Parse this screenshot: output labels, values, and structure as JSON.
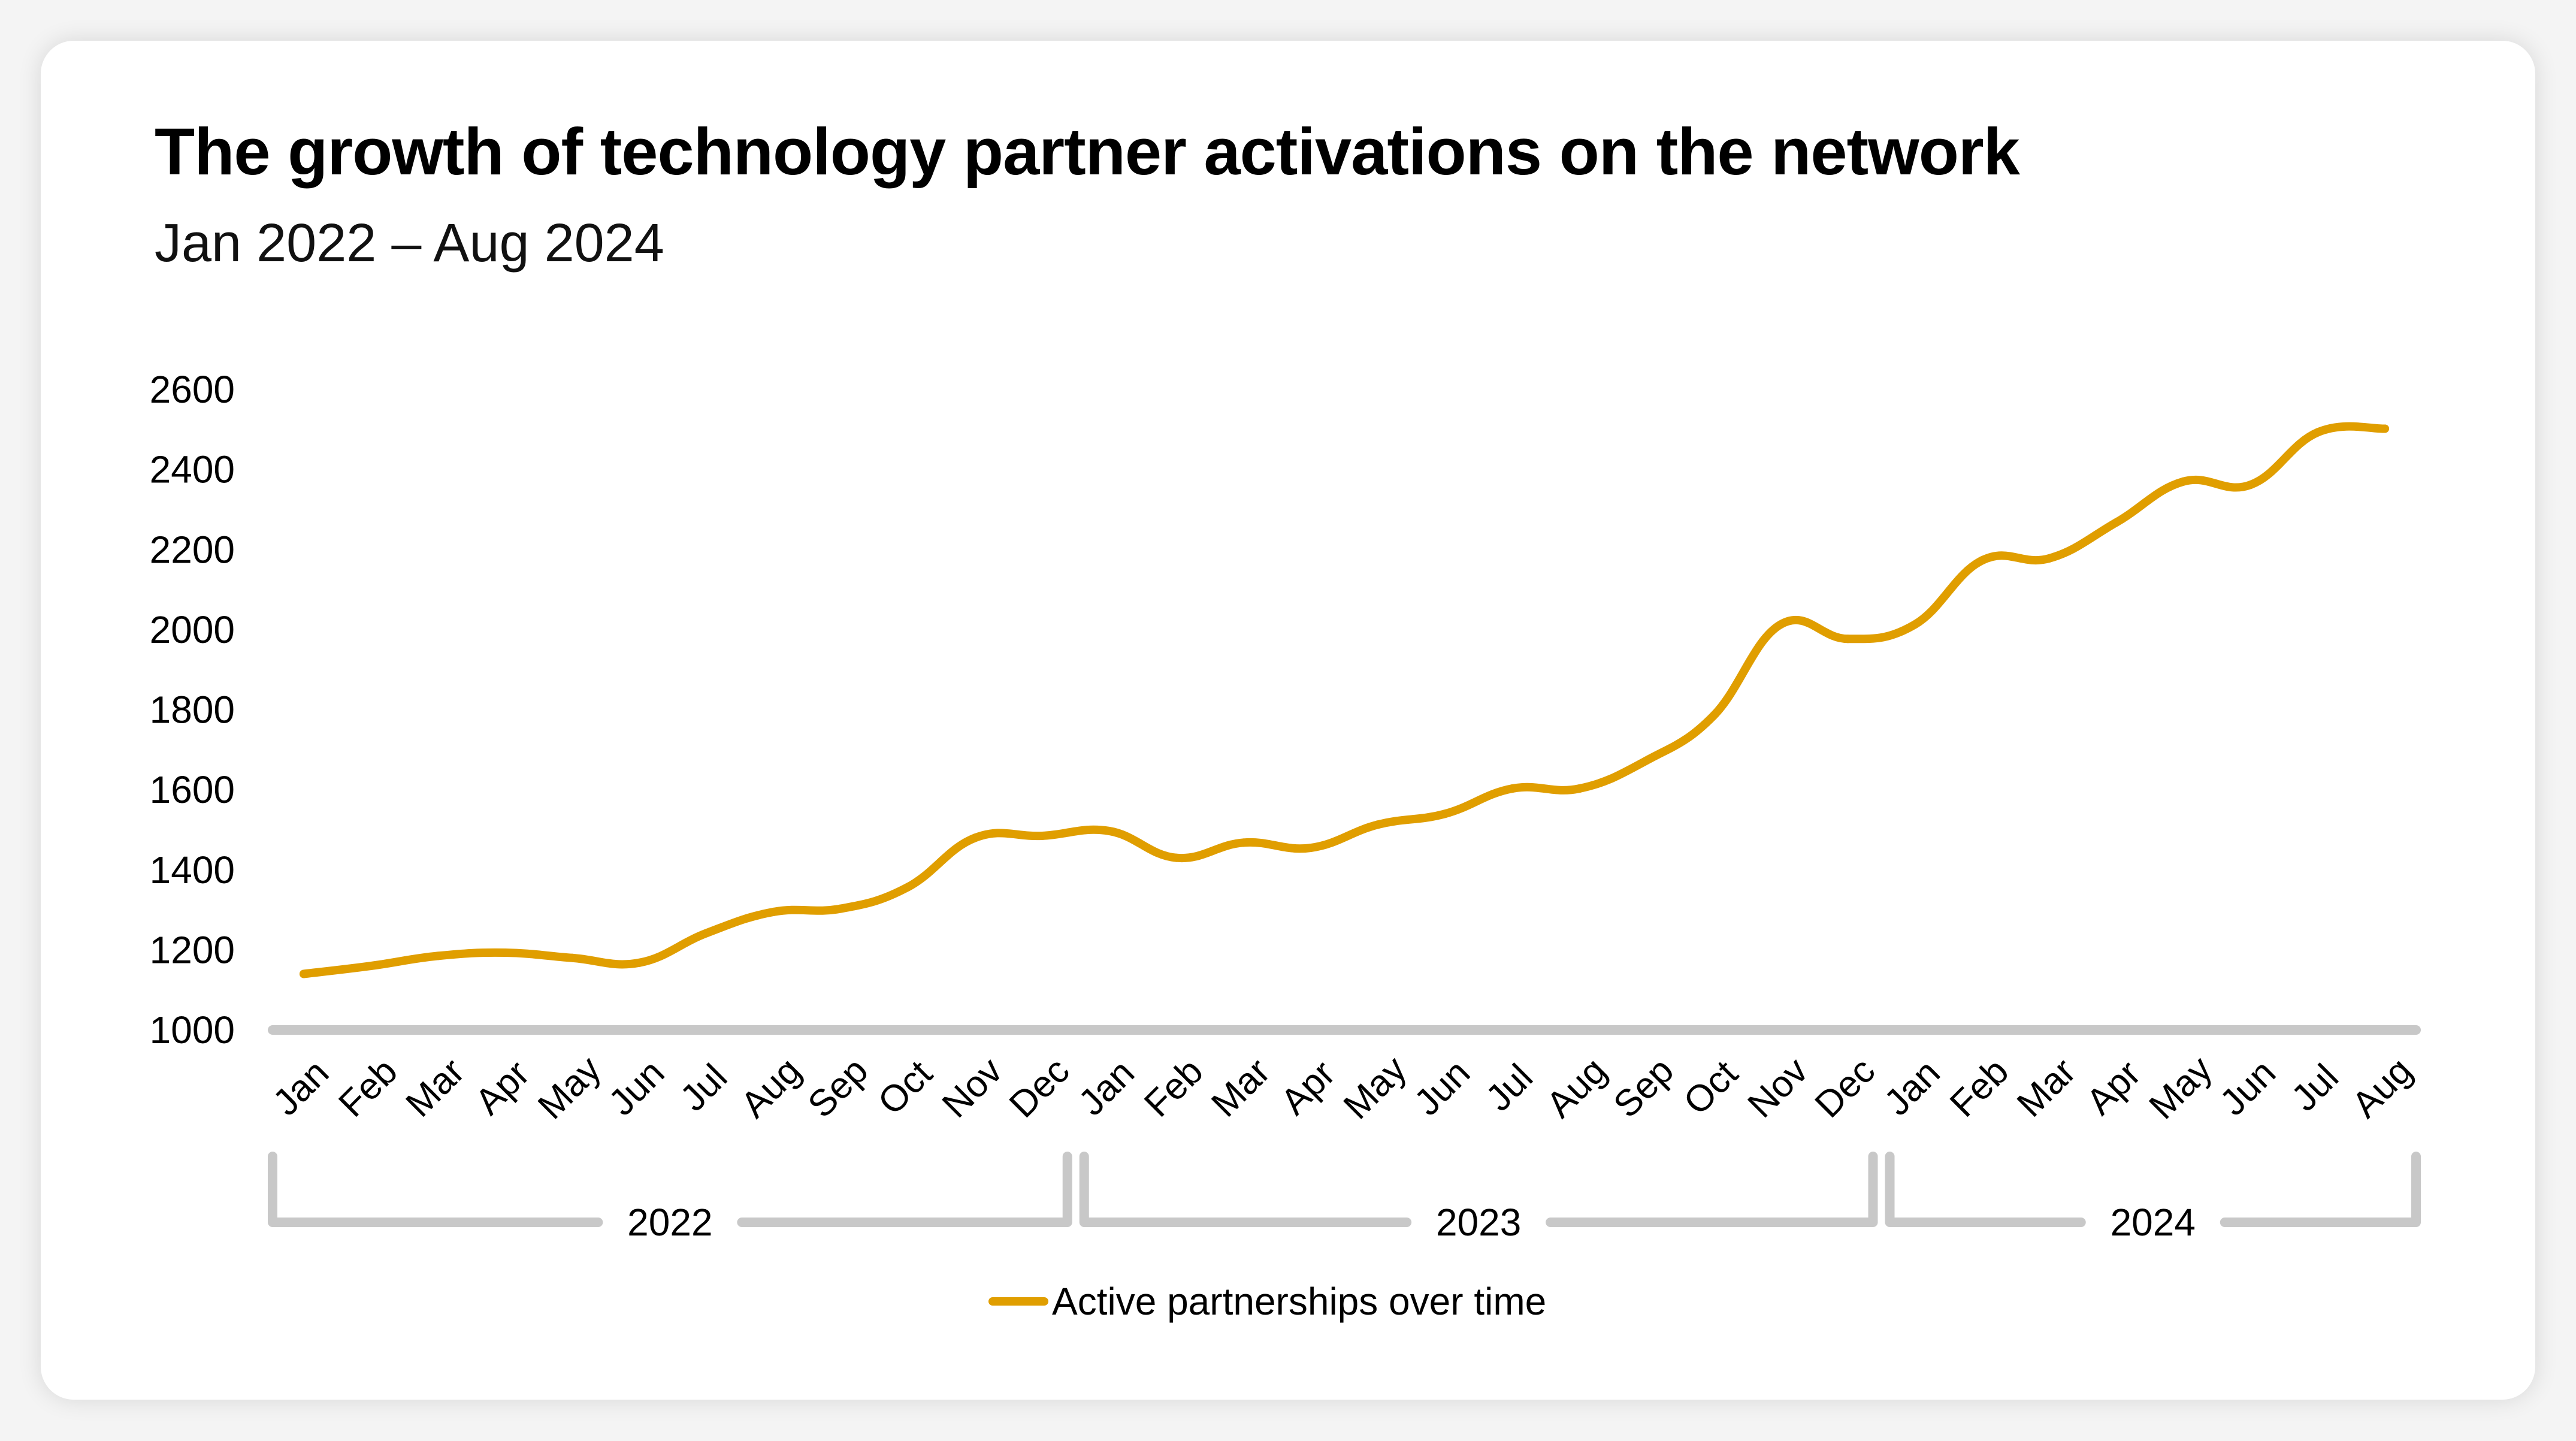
{
  "header": {
    "title": "The growth of technology partner activations on the network",
    "subtitle": "Jan 2022 – Aug 2024"
  },
  "colors": {
    "line": "#E09E00",
    "axis": "#C8C8C8",
    "text": "#000000"
  },
  "legend": {
    "label": "Active partnerships over time"
  },
  "chart_data": {
    "type": "line",
    "title": "The growth of technology partner activations on the network",
    "subtitle": "Jan 2022 – Aug 2024",
    "xlabel": "",
    "ylabel": "",
    "ylim": [
      1000,
      2600
    ],
    "yticks": [
      1000,
      1200,
      1400,
      1600,
      1800,
      2000,
      2200,
      2400,
      2600
    ],
    "grid": false,
    "legend_position": "bottom-center",
    "categories": [
      "Jan",
      "Feb",
      "Mar",
      "Apr",
      "May",
      "Jun",
      "Jul",
      "Aug",
      "Sep",
      "Oct",
      "Nov",
      "Dec",
      "Jan",
      "Feb",
      "Mar",
      "Apr",
      "May",
      "Jun",
      "Jul",
      "Aug",
      "Sep",
      "Oct",
      "Nov",
      "Dec",
      "Jan",
      "Feb",
      "Mar",
      "Apr",
      "May",
      "Jun",
      "Jul",
      "Aug"
    ],
    "year_groups": [
      {
        "label": "2022",
        "start": 0,
        "end": 11
      },
      {
        "label": "2023",
        "start": 12,
        "end": 23
      },
      {
        "label": "2024",
        "start": 24,
        "end": 31
      }
    ],
    "series": [
      {
        "name": "Active partnerships over time",
        "values": [
          1140,
          1160,
          1185,
          1193,
          1180,
          1168,
          1242,
          1295,
          1303,
          1357,
          1480,
          1485,
          1497,
          1430,
          1468,
          1455,
          1513,
          1540,
          1603,
          1603,
          1673,
          1785,
          2013,
          1977,
          2013,
          2173,
          2178,
          2268,
          2370,
          2362,
          2493,
          2502
        ]
      }
    ]
  }
}
